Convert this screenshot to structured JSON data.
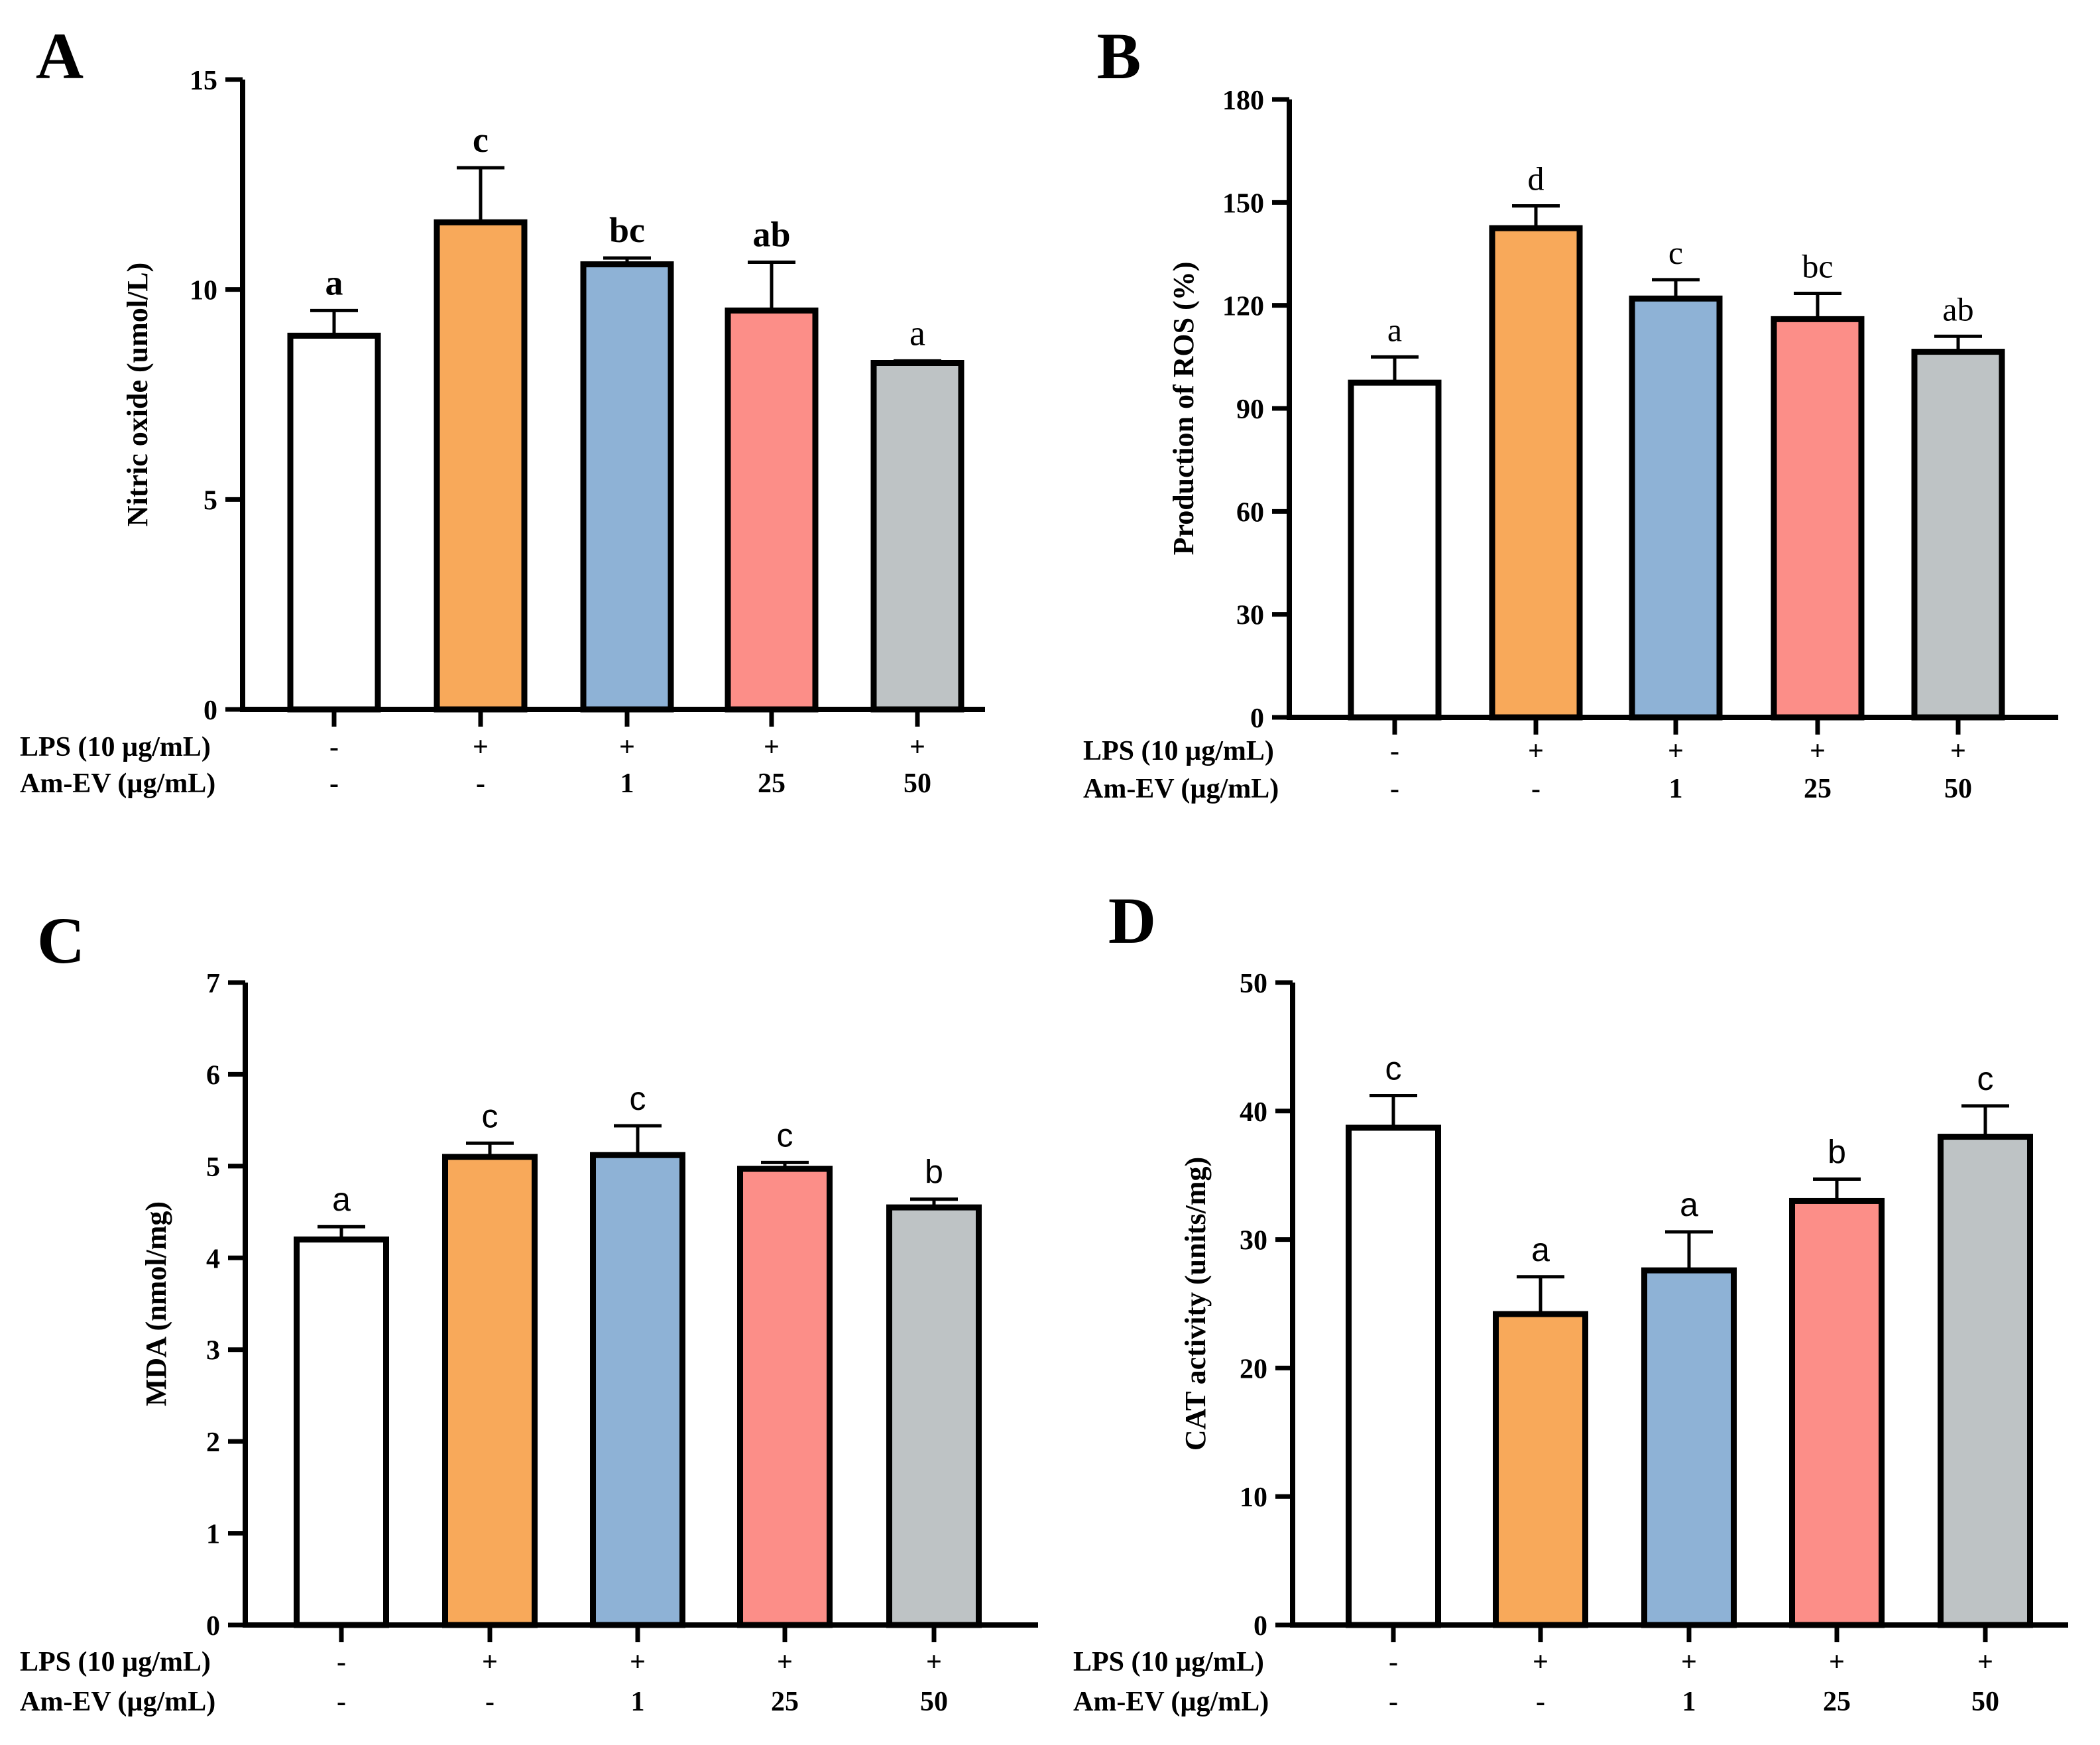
{
  "figure": {
    "treatment_rows": [
      "LPS (10 µg/mL)",
      "Am-EV (µg/mL)"
    ]
  },
  "colors": {
    "bars": [
      "#ffffff",
      "#f8a95a",
      "#8eb2d6",
      "#fc8e88",
      "#bec3c5"
    ],
    "stroke": "#000000"
  },
  "chart_data": [
    {
      "type": "bar",
      "panel_label": "A",
      "ylabel": "Nitric oxide (umol/L)",
      "ylim": [
        0,
        15
      ],
      "yticks": [
        "0",
        "5",
        "10",
        "15"
      ],
      "yticks_values": [
        0,
        5,
        10,
        15
      ],
      "categories": [
        "1",
        "2",
        "3",
        "4",
        "5"
      ],
      "values": [
        8.9,
        11.6,
        10.6,
        9.5,
        8.25
      ],
      "errors": [
        0.6,
        1.3,
        0.15,
        1.15,
        0.05
      ],
      "significance": [
        "a",
        "c",
        "bc",
        "ab",
        "a"
      ],
      "sig_bold": [
        true,
        true,
        true,
        true,
        false
      ],
      "lps_row": [
        "-",
        "+",
        "+",
        "+",
        "+"
      ],
      "amev_row": [
        "-",
        "-",
        "1",
        "25",
        "50"
      ]
    },
    {
      "type": "bar",
      "panel_label": "B",
      "ylabel": "Production of ROS (%)",
      "ylim": [
        0,
        180
      ],
      "yticks": [
        "0",
        "30",
        "60",
        "90",
        "120",
        "150",
        "180"
      ],
      "yticks_values": [
        0,
        30,
        60,
        90,
        120,
        150,
        180
      ],
      "categories": [
        "1",
        "2",
        "3",
        "4",
        "5"
      ],
      "values": [
        97.5,
        142.5,
        122,
        116,
        106.5
      ],
      "errors": [
        7.5,
        6.5,
        5.5,
        7.5,
        4.5
      ],
      "significance": [
        "a",
        "d",
        "c",
        "bc",
        "ab"
      ],
      "sig_bold": [
        false,
        false,
        false,
        false,
        false
      ],
      "lps_row": [
        "-",
        "+",
        "+",
        "+",
        "+"
      ],
      "amev_row": [
        "-",
        "-",
        "1",
        "25",
        "50"
      ]
    },
    {
      "type": "bar",
      "panel_label": "C",
      "ylabel": "MDA (nmol/mg)",
      "ylim": [
        0,
        7
      ],
      "yticks": [
        "0",
        "1",
        "2",
        "3",
        "4",
        "5",
        "6",
        "7"
      ],
      "yticks_values": [
        0,
        1,
        2,
        3,
        4,
        5,
        6,
        7
      ],
      "categories": [
        "1",
        "2",
        "3",
        "4",
        "5"
      ],
      "values": [
        4.2,
        5.1,
        5.12,
        4.97,
        4.55
      ],
      "errors": [
        0.14,
        0.15,
        0.32,
        0.07,
        0.09
      ],
      "significance": [
        "a",
        "c",
        "c",
        "c",
        "b"
      ],
      "sig_bold": [
        false,
        false,
        false,
        false,
        false
      ],
      "lps_row": [
        "-",
        "+",
        "+",
        "+",
        "+"
      ],
      "amev_row": [
        "-",
        "-",
        "1",
        "25",
        "50"
      ]
    },
    {
      "type": "bar",
      "panel_label": "D",
      "ylabel": "CAT activity (units/mg)",
      "ylim": [
        0,
        50
      ],
      "yticks": [
        "0",
        "10",
        "20",
        "30",
        "40",
        "50"
      ],
      "yticks_values": [
        0,
        10,
        20,
        30,
        40,
        50
      ],
      "categories": [
        "1",
        "2",
        "3",
        "4",
        "5"
      ],
      "values": [
        38.7,
        24.2,
        27.6,
        33.0,
        38.0
      ],
      "errors": [
        2.5,
        2.9,
        3.0,
        1.7,
        2.4
      ],
      "significance": [
        "c",
        "a",
        "a",
        "b",
        "c"
      ],
      "sig_bold": [
        false,
        false,
        false,
        false,
        false
      ],
      "lps_row": [
        "-",
        "+",
        "+",
        "+",
        "+"
      ],
      "amev_row": [
        "-",
        "-",
        "1",
        "25",
        "50"
      ]
    }
  ]
}
